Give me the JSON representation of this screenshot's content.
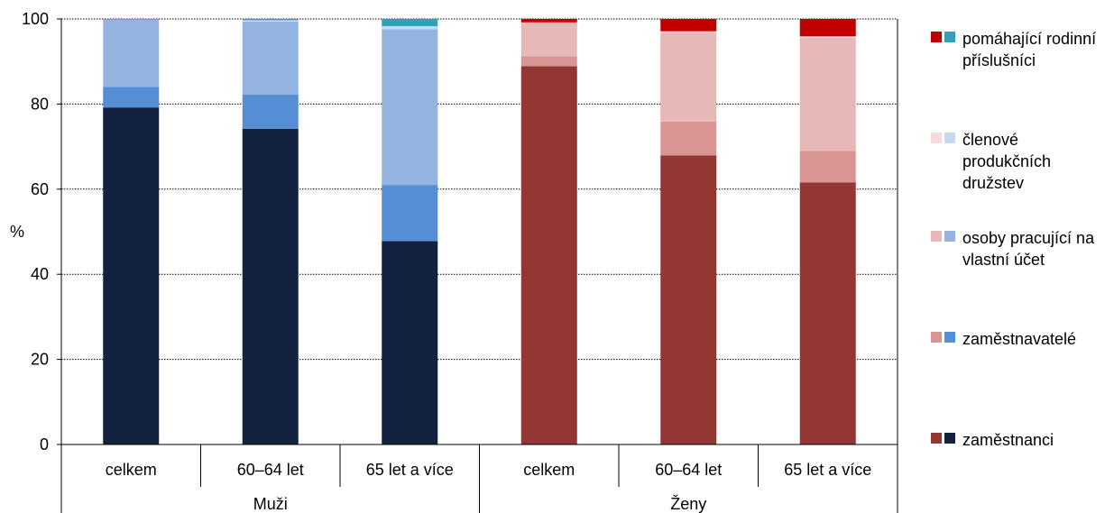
{
  "chart_data": {
    "type": "bar",
    "stacked": true,
    "ylabel": "%",
    "ylim": [
      0,
      100
    ],
    "yticks": [
      0,
      20,
      40,
      60,
      80,
      100
    ],
    "grid": true,
    "legend_position": "right",
    "groups": [
      {
        "label": "Muži",
        "categories": [
          "celkem",
          "60–64 let",
          "65 let a více"
        ]
      },
      {
        "label": "Ženy",
        "categories": [
          "celkem",
          "60–64 let",
          "65 let a více"
        ]
      }
    ],
    "series": [
      {
        "name": "zaměstnanci",
        "colors": [
          "#13233f",
          "#943634"
        ],
        "values": [
          [
            79.2,
            74.2,
            47.8
          ],
          [
            88.9,
            67.9,
            61.6
          ]
        ]
      },
      {
        "name": "zaměstnavatelé",
        "colors": [
          "#558ed5",
          "#d99594"
        ],
        "values": [
          [
            4.8,
            8.0,
            13.2
          ],
          [
            2.3,
            8.0,
            7.4
          ]
        ]
      },
      {
        "name": "osoby pracující na vlastní účet",
        "colors": [
          "#95b3e1",
          "#e6b9b8"
        ],
        "values": [
          [
            15.9,
            17.2,
            36.6
          ],
          [
            8.0,
            20.9,
            26.6
          ]
        ]
      },
      {
        "name": "členové produkčních družstev",
        "colors": [
          "#c6d9f1",
          "#f2dcdb"
        ],
        "values": [
          [
            0.0,
            0.3,
            0.7
          ],
          [
            0.0,
            0.3,
            0.3
          ]
        ]
      },
      {
        "name": "pomáhající rodinní příslušníci",
        "colors": [
          "#31a0b8",
          "#c00000"
        ],
        "values": [
          [
            0.1,
            0.3,
            1.7
          ],
          [
            0.8,
            2.9,
            4.1
          ]
        ]
      }
    ]
  },
  "legend": [
    {
      "label": "pomáhající rodinní příslušníci",
      "color_women": "#c00000",
      "color_men": "#31a0b8"
    },
    {
      "label": "členové produkčních družstev",
      "color_women": "#f2dcdb",
      "color_men": "#c6d9f1"
    },
    {
      "label": "osoby pracující na vlastní účet",
      "color_women": "#e6b9b8",
      "color_men": "#95b3e1"
    },
    {
      "label": "zaměstnavatelé",
      "color_women": "#d99594",
      "color_men": "#558ed5"
    },
    {
      "label": "zaměstnanci",
      "color_women": "#943634",
      "color_men": "#13233f"
    }
  ]
}
